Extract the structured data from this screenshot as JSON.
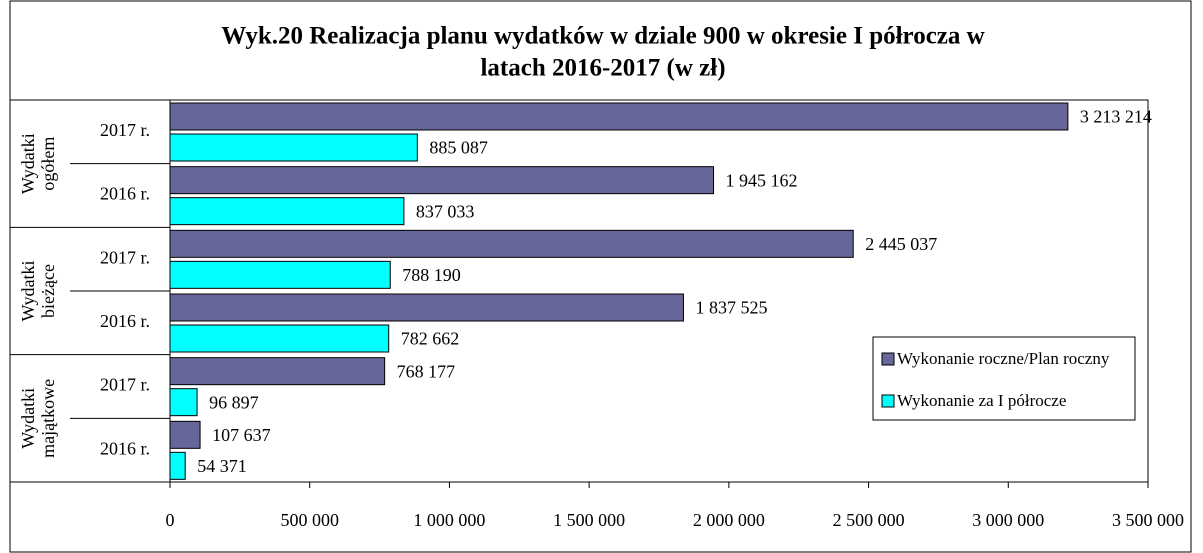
{
  "chart_data": {
    "type": "hbar",
    "title_lines": [
      "Wyk.20 Realizacja planu wydatków w dziale 900 w okresie I półrocza w",
      "latach 2016-2017 (w zł)"
    ],
    "groups": [
      {
        "lines": [
          "Wydatki",
          "ogółem"
        ]
      },
      {
        "lines": [
          "Wydatki",
          "bieżące"
        ]
      },
      {
        "lines": [
          "Wydatki",
          "majątkowe"
        ]
      }
    ],
    "categories": [
      "2017 r.",
      "2016 r.",
      "2017 r.",
      "2016 r.",
      "2017 r.",
      "2016 r."
    ],
    "series": [
      {
        "name": "Wykonanie roczne/Plan roczny",
        "color": "#666699",
        "values": [
          3213214,
          1945162,
          2445037,
          1837525,
          768177,
          107637
        ],
        "value_labels": [
          "3 213 214",
          "1 945 162",
          "2 445 037",
          "1 837 525",
          "768 177",
          "107 637"
        ]
      },
      {
        "name": "Wykonanie za I półrocze",
        "color": "#00ffff",
        "values": [
          885087,
          837033,
          788190,
          782662,
          96897,
          54371
        ],
        "value_labels": [
          "885 087",
          "837 033",
          "788 190",
          "782 662",
          "96 897",
          "54 371"
        ]
      }
    ],
    "xlim": [
      0,
      3500000
    ],
    "xticks": [
      0,
      {
        "value": 500000,
        "label": "500 000"
      },
      {
        "value": 1000000,
        "label": "1 000 000"
      },
      {
        "value": 1500000,
        "label": "1 500 000"
      },
      {
        "value": 2000000,
        "label": "2 000 000"
      },
      {
        "value": 2500000,
        "label": "2 500 000"
      },
      {
        "value": 3000000,
        "label": "3 000 000"
      },
      {
        "value": 3500000,
        "label": "3 500 000"
      }
    ],
    "legend": "right"
  }
}
